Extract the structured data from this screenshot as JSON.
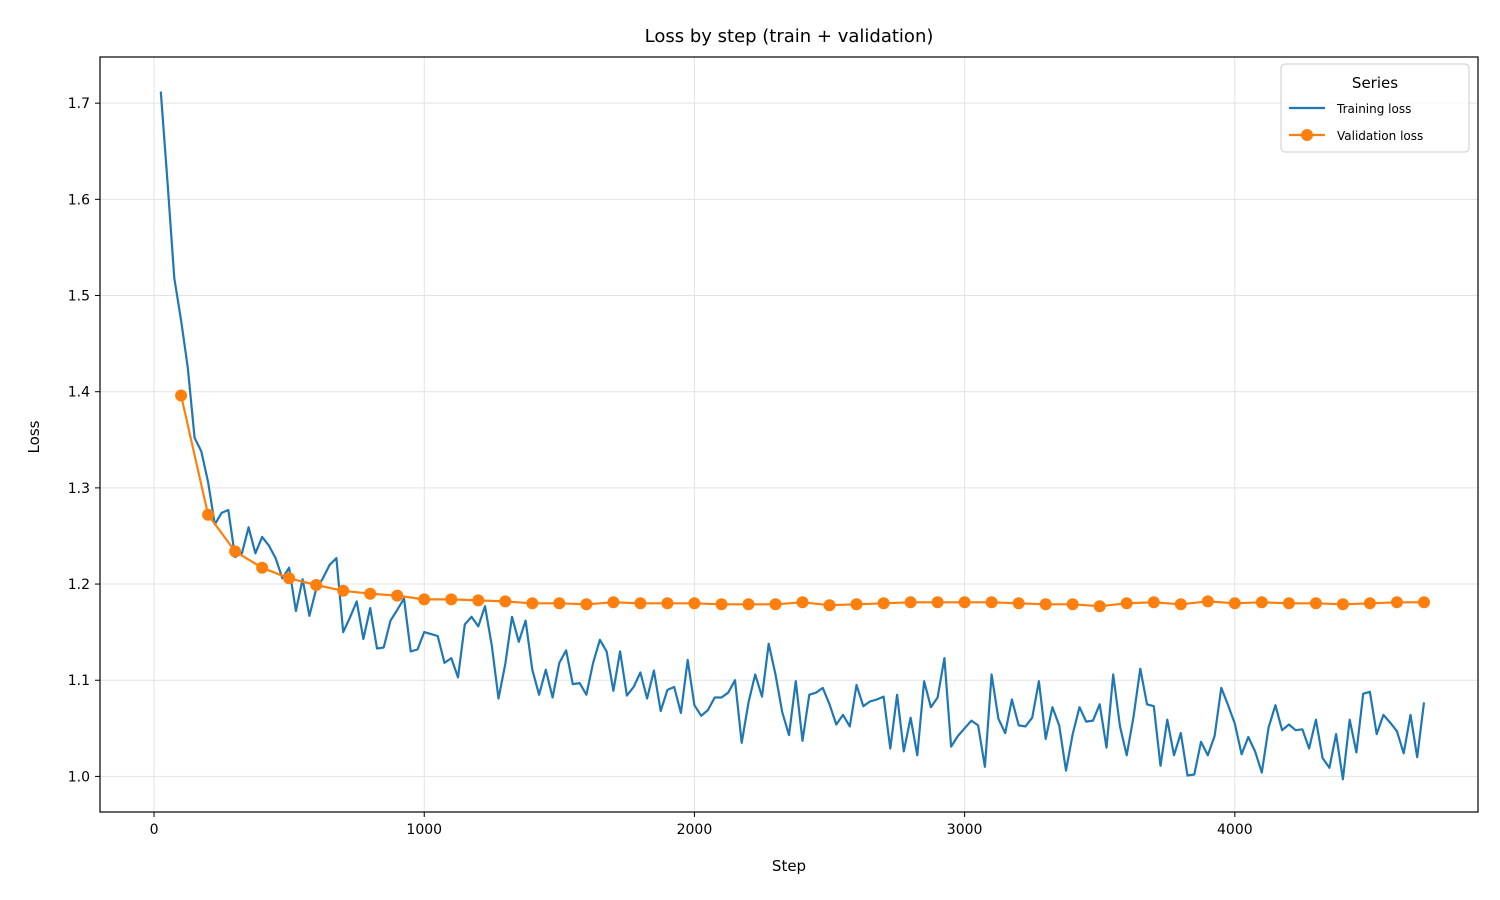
{
  "chart_data": {
    "type": "line",
    "title": "Loss by step (train + validation)",
    "xlabel": "Step",
    "ylabel": "Loss",
    "xlim": [
      -200,
      4900
    ],
    "ylim": [
      0.963,
      1.748
    ],
    "xticks": [
      0,
      1000,
      2000,
      3000,
      4000
    ],
    "yticks": [
      1.0,
      1.1,
      1.2,
      1.3,
      1.4,
      1.5,
      1.6,
      1.7
    ],
    "grid": true,
    "legend": {
      "title": "Series",
      "position": "top-right"
    },
    "series": [
      {
        "name": "Training loss",
        "color": "#1f77b4",
        "marker": "none",
        "x": [
          25,
          50,
          75,
          100,
          125,
          150,
          175,
          200,
          225,
          250,
          275,
          300,
          325,
          350,
          375,
          400,
          425,
          450,
          475,
          500,
          525,
          550,
          575,
          600,
          625,
          650,
          675,
          700,
          725,
          750,
          775,
          800,
          825,
          850,
          875,
          900,
          925,
          950,
          975,
          1000,
          1025,
          1050,
          1075,
          1100,
          1125,
          1150,
          1175,
          1200,
          1225,
          1250,
          1275,
          1300,
          1325,
          1350,
          1375,
          1400,
          1425,
          1450,
          1475,
          1500,
          1525,
          1550,
          1575,
          1600,
          1625,
          1650,
          1675,
          1700,
          1725,
          1750,
          1775,
          1800,
          1825,
          1850,
          1875,
          1900,
          1925,
          1950,
          1975,
          2000,
          2025,
          2050,
          2075,
          2100,
          2125,
          2150,
          2175,
          2200,
          2225,
          2250,
          2275,
          2300,
          2325,
          2350,
          2375,
          2400,
          2425,
          2450,
          2475,
          2500,
          2525,
          2550,
          2575,
          2600,
          2625,
          2650,
          2675,
          2700,
          2725,
          2750,
          2775,
          2800,
          2825,
          2850,
          2875,
          2900,
          2925,
          2950,
          2975,
          3000,
          3025,
          3050,
          3075,
          3100,
          3125,
          3150,
          3175,
          3200,
          3225,
          3250,
          3275,
          3300,
          3325,
          3350,
          3375,
          3400,
          3425,
          3450,
          3475,
          3500,
          3525,
          3550,
          3575,
          3600,
          3625,
          3650,
          3675,
          3700,
          3725,
          3750,
          3775,
          3800,
          3825,
          3850,
          3875,
          3900,
          3925,
          3950,
          3975,
          4000,
          4025,
          4050,
          4075,
          4100,
          4125,
          4150,
          4175,
          4200,
          4225,
          4250,
          4275,
          4300,
          4325,
          4350,
          4375,
          4400,
          4425,
          4450,
          4475,
          4500,
          4525,
          4550,
          4575,
          4600,
          4625,
          4650,
          4675,
          4700
        ],
        "y": [
          1.712,
          1.618,
          1.518,
          1.474,
          1.425,
          1.352,
          1.338,
          1.306,
          1.262,
          1.274,
          1.277,
          1.228,
          1.232,
          1.259,
          1.232,
          1.249,
          1.24,
          1.227,
          1.206,
          1.217,
          1.172,
          1.205,
          1.167,
          1.195,
          1.206,
          1.22,
          1.227,
          1.15,
          1.165,
          1.182,
          1.143,
          1.175,
          1.133,
          1.134,
          1.162,
          1.173,
          1.185,
          1.13,
          1.132,
          1.15,
          1.148,
          1.146,
          1.118,
          1.123,
          1.103,
          1.158,
          1.166,
          1.156,
          1.177,
          1.136,
          1.081,
          1.117,
          1.166,
          1.14,
          1.162,
          1.111,
          1.085,
          1.111,
          1.082,
          1.118,
          1.131,
          1.096,
          1.097,
          1.085,
          1.118,
          1.142,
          1.13,
          1.089,
          1.13,
          1.084,
          1.093,
          1.108,
          1.081,
          1.11,
          1.068,
          1.09,
          1.093,
          1.066,
          1.121,
          1.074,
          1.063,
          1.069,
          1.082,
          1.082,
          1.087,
          1.1,
          1.035,
          1.077,
          1.106,
          1.083,
          1.138,
          1.106,
          1.067,
          1.043,
          1.099,
          1.037,
          1.085,
          1.087,
          1.092,
          1.075,
          1.054,
          1.064,
          1.052,
          1.095,
          1.073,
          1.078,
          1.08,
          1.083,
          1.029,
          1.085,
          1.026,
          1.061,
          1.022,
          1.099,
          1.072,
          1.082,
          1.123,
          1.031,
          1.042,
          1.05,
          1.058,
          1.053,
          1.01,
          1.106,
          1.06,
          1.045,
          1.08,
          1.053,
          1.052,
          1.061,
          1.099,
          1.039,
          1.072,
          1.053,
          1.006,
          1.044,
          1.072,
          1.057,
          1.058,
          1.075,
          1.03,
          1.106,
          1.052,
          1.022,
          1.062,
          1.112,
          1.075,
          1.073,
          1.011,
          1.059,
          1.022,
          1.045,
          1.001,
          1.002,
          1.036,
          1.022,
          1.042,
          1.092,
          1.074,
          1.055,
          1.023,
          1.041,
          1.026,
          1.004,
          1.051,
          1.074,
          1.048,
          1.054,
          1.048,
          1.049,
          1.029,
          1.059,
          1.019,
          1.009,
          1.044,
          0.997,
          1.059,
          1.025,
          1.086,
          1.088,
          1.044,
          1.064,
          1.056,
          1.047,
          1.024,
          1.064,
          1.02,
          1.077
        ]
      },
      {
        "name": "Validation loss",
        "color": "#ff7f0e",
        "marker": "circle",
        "x": [
          100,
          200,
          300,
          400,
          500,
          600,
          700,
          800,
          900,
          1000,
          1100,
          1200,
          1300,
          1400,
          1500,
          1600,
          1700,
          1800,
          1900,
          2000,
          2100,
          2200,
          2300,
          2400,
          2500,
          2600,
          2700,
          2800,
          2900,
          3000,
          3100,
          3200,
          3300,
          3400,
          3500,
          3600,
          3700,
          3800,
          3900,
          4000,
          4100,
          4200,
          4300,
          4400,
          4500,
          4600,
          4700
        ],
        "y": [
          1.396,
          1.272,
          1.234,
          1.217,
          1.206,
          1.199,
          1.193,
          1.19,
          1.188,
          1.184,
          1.184,
          1.183,
          1.182,
          1.18,
          1.18,
          1.179,
          1.181,
          1.18,
          1.18,
          1.18,
          1.179,
          1.179,
          1.179,
          1.181,
          1.178,
          1.179,
          1.18,
          1.181,
          1.181,
          1.181,
          1.181,
          1.18,
          1.179,
          1.179,
          1.177,
          1.18,
          1.181,
          1.179,
          1.182,
          1.18,
          1.181,
          1.18,
          1.18,
          1.179,
          1.18,
          1.181,
          1.181
        ]
      }
    ]
  }
}
